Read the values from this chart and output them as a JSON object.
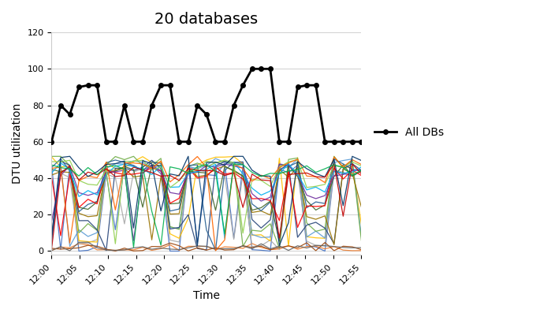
{
  "title": "20 databases",
  "xlabel": "Time",
  "ylabel": "DTU utilization",
  "ylim": [
    -2,
    120
  ],
  "yticks": [
    0,
    20,
    40,
    60,
    80,
    100,
    120
  ],
  "time_labels": [
    "12:00",
    "12:05",
    "12:10",
    "12:15",
    "12:20",
    "12:25",
    "12:30",
    "12:35",
    "12:40",
    "12:45",
    "12:50",
    "12:55"
  ],
  "all_dbs_values": [
    60,
    80,
    75,
    90,
    91,
    91,
    60,
    60,
    80,
    60,
    60,
    80,
    91,
    91,
    60,
    60,
    80,
    75,
    60,
    60,
    80,
    91,
    100,
    100,
    100,
    60,
    60,
    90,
    91,
    91,
    60,
    60,
    60,
    60,
    60
  ],
  "legend_label": "All DBs",
  "db_colors": [
    "#4472C4",
    "#ED7D31",
    "#A9A9A9",
    "#FFC000",
    "#5B9BD5",
    "#70AD47",
    "#264478",
    "#9E480E",
    "#636363",
    "#997300",
    "#255E91",
    "#43682B",
    "#FF0000",
    "#7030A0",
    "#00B0F0",
    "#92D050",
    "#FF6600",
    "#003366",
    "#C00000",
    "#00B050"
  ],
  "n_dbs": 20,
  "n_points": 35,
  "background_color": "#FFFFFF",
  "grid_color": "#D0D0D0",
  "title_fontsize": 14,
  "label_fontsize": 10,
  "tick_fontsize": 8
}
